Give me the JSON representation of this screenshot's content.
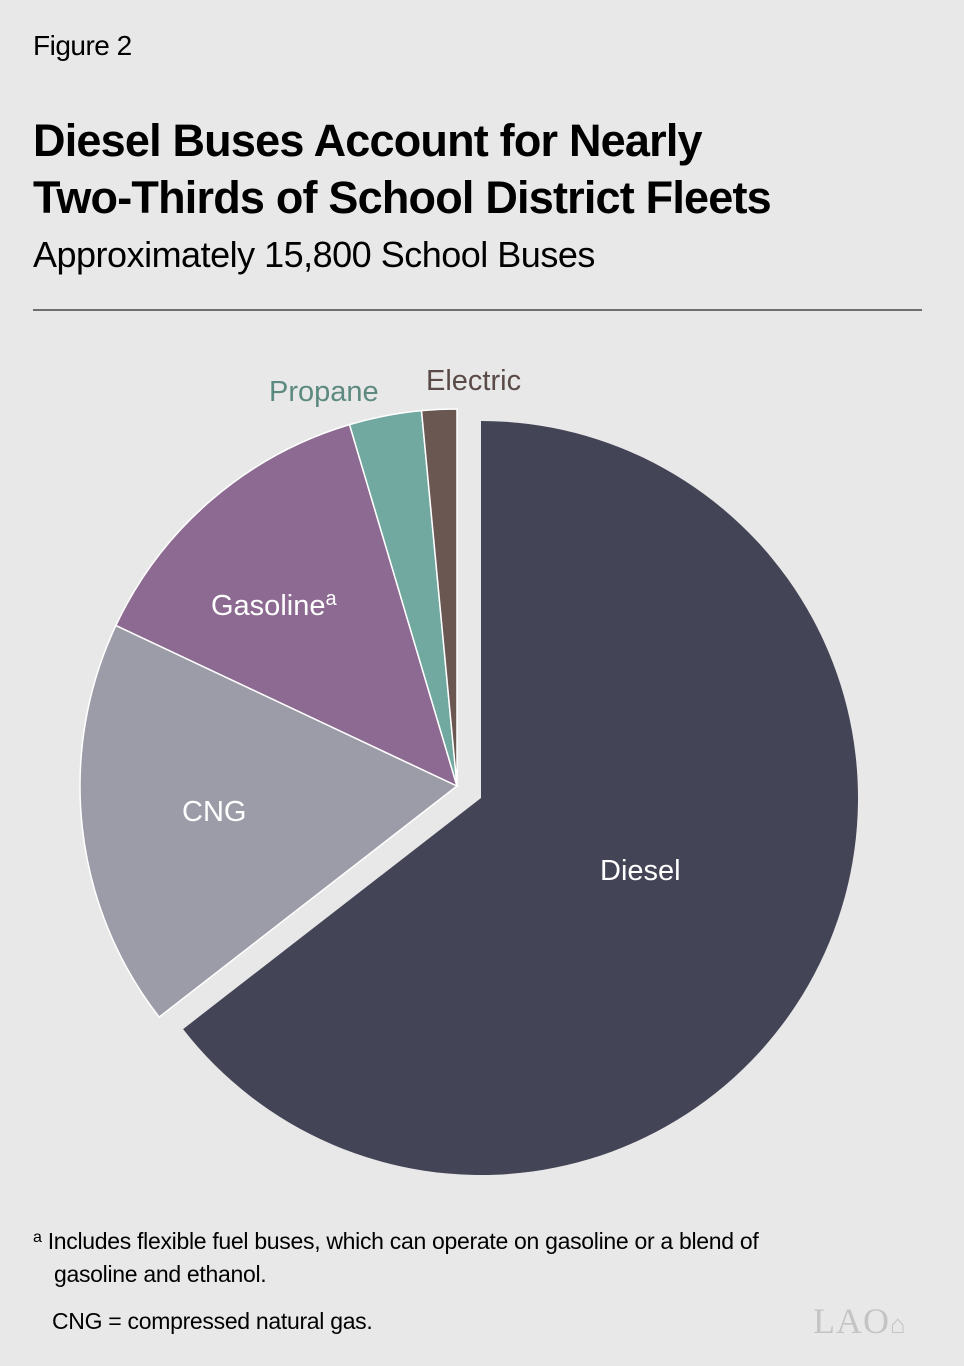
{
  "figure_label": "Figure 2",
  "title_line1": "Diesel Buses Account for Nearly",
  "title_line2": "Two-Thirds of School District Fleets",
  "subtitle": "Approximately 15,800 School Buses",
  "footnotes": {
    "marker": "a",
    "note_a_line1": "Includes flexible fuel buses, which can operate on gasoline or a blend of",
    "note_a_line2": "gasoline and ethanol.",
    "abbrev": "CNG = compressed natural gas."
  },
  "logo": "LAO",
  "chart_data": {
    "type": "pie",
    "title": "Diesel Buses Account for Nearly Two-Thirds of School District Fleets",
    "subtitle": "Approximately 15,800 School Buses",
    "total_buses": 15800,
    "categories": [
      "Diesel",
      "CNG",
      "Gasoline",
      "Propane",
      "Electric"
    ],
    "values": [
      64.5,
      17.5,
      13.4,
      3.1,
      1.5
    ],
    "unit": "percent of fleet (estimated from slice angles)",
    "colors": [
      "#444457",
      "#9c9ca8",
      "#8d6a91",
      "#71a8a0",
      "#6b5752"
    ],
    "exploded": [
      "Diesel"
    ],
    "label_notes": {
      "Gasoline": "a"
    },
    "labels": {
      "diesel": "Diesel",
      "cng": "CNG",
      "gasoline": "Gasoline",
      "gasoline_sup": "a",
      "propane": "Propane",
      "electric": "Electric"
    },
    "label_colors": {
      "inside": "#ffffff",
      "propane": "#5d8a80",
      "electric": "#5a4a47"
    },
    "legend": "none (direct labels)"
  }
}
